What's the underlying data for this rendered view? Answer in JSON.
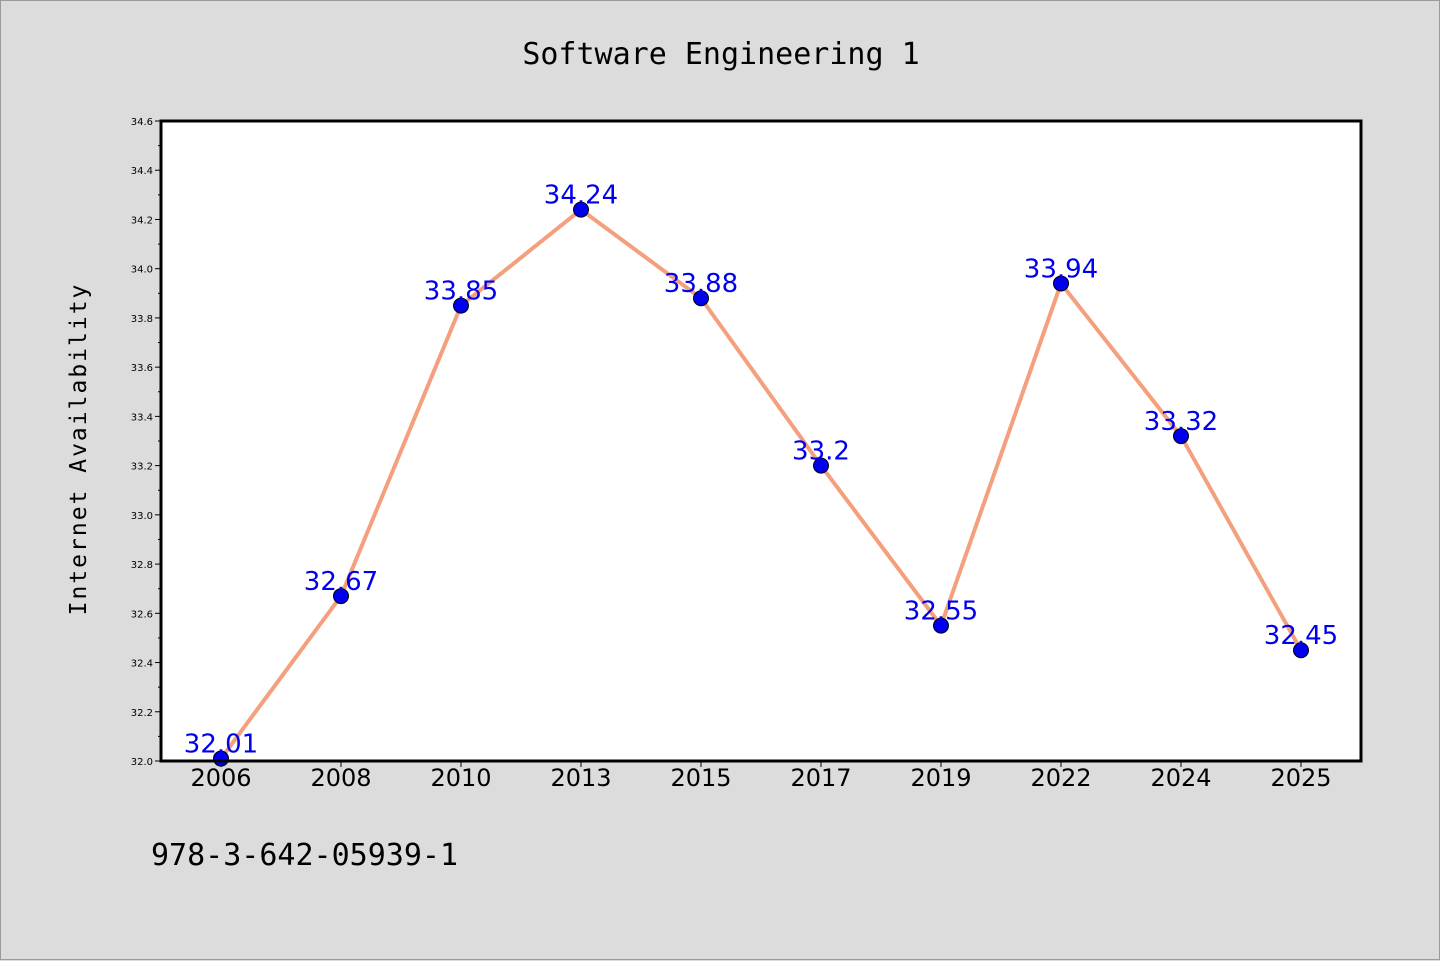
{
  "chart_data": {
    "type": "line",
    "title": "Software Engineering 1",
    "xlabel": "",
    "ylabel": "Internet Availability",
    "categories": [
      "2006",
      "2008",
      "2010",
      "2013",
      "2015",
      "2017",
      "2019",
      "2022",
      "2024",
      "2025"
    ],
    "series": [
      {
        "values": [
          32.01,
          32.67,
          33.85,
          34.24,
          33.88,
          33.2,
          32.55,
          33.94,
          33.32,
          32.45
        ],
        "data_labels": [
          "32.01",
          "32.67",
          "33.85",
          "34.24",
          "33.88",
          "33.2",
          "32.55",
          "33.94",
          "33.32",
          "32.45"
        ],
        "line_color": "#f4a07e",
        "marker_color": "#0000ee",
        "label_color": "#0000ee"
      }
    ],
    "ylim": [
      32.0,
      34.6
    ],
    "y_ticks": [
      "32.0",
      "32.2",
      "32.4",
      "32.6",
      "32.8",
      "33.0",
      "33.2",
      "33.4",
      "33.6",
      "33.8",
      "34.0",
      "34.2",
      "34.4",
      "34.6"
    ],
    "grid": false,
    "background_color": "#dcdcdc",
    "plot_background": "#ffffff"
  },
  "footer_text": "978-3-642-05939-1"
}
